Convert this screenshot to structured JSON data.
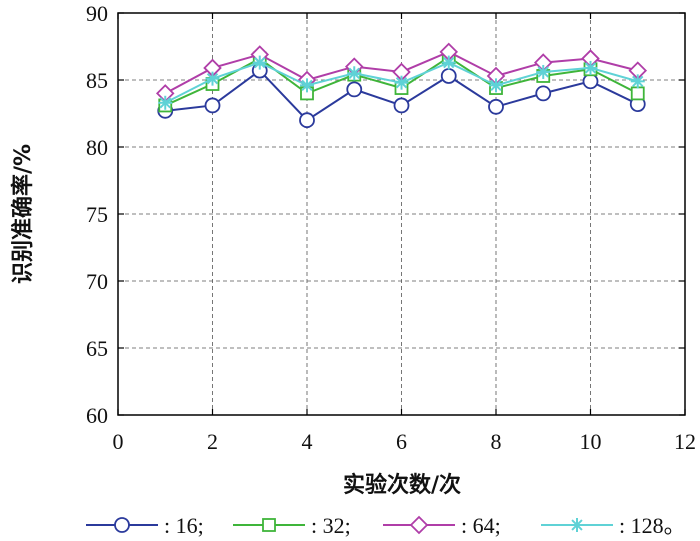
{
  "chart_data": {
    "type": "line",
    "xlabel": "实验次数/次",
    "ylabel": "识别准确率/%",
    "xlim": [
      0,
      12
    ],
    "ylim": [
      60,
      90
    ],
    "xticks": [
      0,
      2,
      4,
      6,
      8,
      10,
      12
    ],
    "yticks": [
      60,
      65,
      70,
      75,
      80,
      85,
      90
    ],
    "grid": true,
    "legend_position": "bottom",
    "x": [
      1,
      2,
      3,
      4,
      5,
      6,
      7,
      8,
      9,
      10,
      11
    ],
    "series": [
      {
        "name": ": 16;",
        "color": "#2b3a9c",
        "marker": "circle",
        "values": [
          82.7,
          83.1,
          85.7,
          82.0,
          84.3,
          83.1,
          85.3,
          83.0,
          84.0,
          84.9,
          83.2
        ]
      },
      {
        "name": ": 32;",
        "color": "#3fb53a",
        "marker": "square",
        "values": [
          83.1,
          84.7,
          86.6,
          84.0,
          85.4,
          84.4,
          86.7,
          84.4,
          85.3,
          85.8,
          84.0
        ]
      },
      {
        "name": ": 64;",
        "color": "#b03ea8",
        "marker": "diamond",
        "values": [
          84.0,
          85.9,
          86.9,
          85.0,
          86.0,
          85.6,
          87.1,
          85.3,
          86.3,
          86.6,
          85.7
        ]
      },
      {
        "name": ": 128。",
        "color": "#5fd2d6",
        "marker": "asterisk",
        "values": [
          83.3,
          85.1,
          86.3,
          84.6,
          85.5,
          84.8,
          86.3,
          84.6,
          85.6,
          85.9,
          84.9
        ]
      }
    ]
  }
}
